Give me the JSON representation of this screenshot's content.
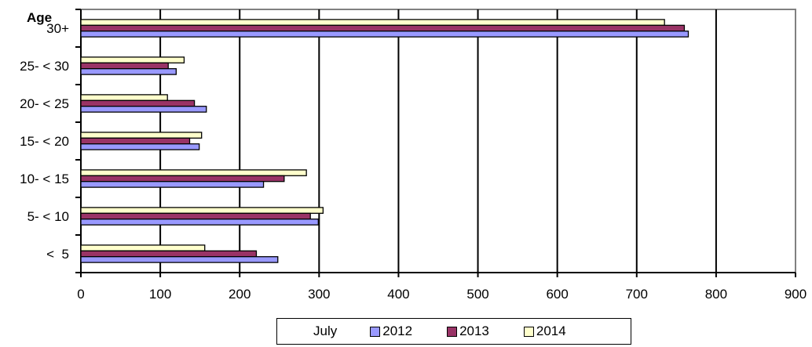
{
  "chart_data": {
    "type": "bar",
    "orientation": "horizontal",
    "title": "",
    "ylabel": "Age",
    "xlabel": "",
    "categories": [
      "30+",
      "25- < 30",
      "20- < 25",
      "15- < 20",
      "10- < 15",
      "5- < 10",
      "<  5"
    ],
    "series": [
      {
        "name": "2012",
        "color": "#9999ff",
        "values": [
          765,
          120,
          158,
          149,
          230,
          299,
          248
        ]
      },
      {
        "name": "2013",
        "color": "#993366",
        "values": [
          760,
          110,
          143,
          137,
          256,
          289,
          221
        ]
      },
      {
        "name": "2014",
        "color": "#ffffcc",
        "values": [
          735,
          130,
          109,
          152,
          284,
          305,
          156
        ]
      }
    ],
    "xlim": [
      0,
      900
    ],
    "xticks": [
      "0",
      "100",
      "200",
      "300",
      "400",
      "500",
      "600",
      "700",
      "800",
      "900"
    ],
    "grid": "vertical",
    "legend": {
      "title": "July",
      "position": "bottom"
    }
  }
}
